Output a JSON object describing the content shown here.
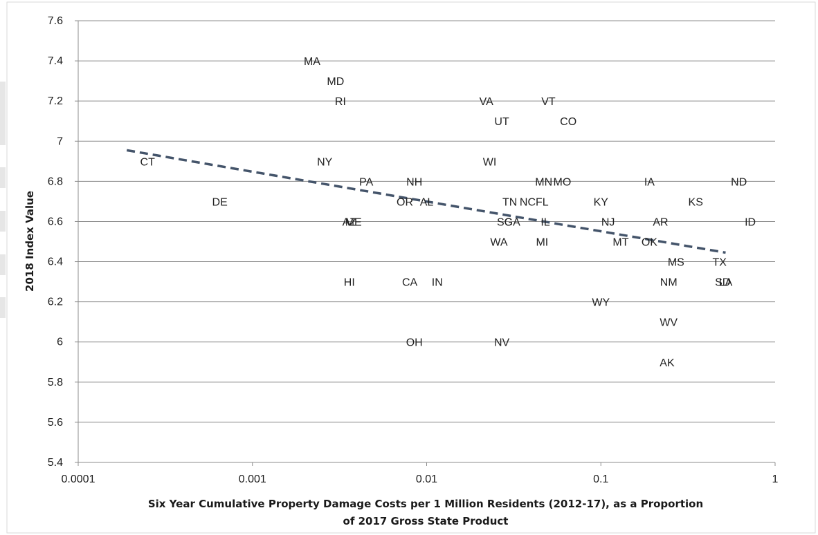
{
  "chart_data": {
    "type": "scatter",
    "title": "",
    "xlabel_lines": [
      "Six Year Cumulative Property Damage Costs per 1 Million Residents (2012-17), as a Proportion",
      "of 2017 Gross State Product"
    ],
    "ylabel": "2018 Index Value",
    "x_scale": "log",
    "xlim": [
      0.0001,
      1
    ],
    "ylim": [
      5.4,
      7.6
    ],
    "x_ticks": [
      0.0001,
      0.001,
      0.01,
      0.1,
      1
    ],
    "x_tick_labels": [
      "0.0001",
      "0.001",
      "0.01",
      "0.1",
      "1"
    ],
    "y_ticks": [
      5.4,
      5.6,
      5.8,
      6,
      6.2,
      6.4,
      6.6,
      6.8,
      7,
      7.2,
      7.4,
      7.6
    ],
    "y_tick_labels": [
      "5.4",
      "5.6",
      "5.8",
      "6",
      "6.2",
      "6.4",
      "6.6",
      "6.8",
      "7",
      "7.2",
      "7.4",
      "7.6"
    ],
    "grid": "horizontal",
    "legend": "none",
    "marker_style": "state abbreviation labels",
    "points": [
      {
        "label": "MA",
        "x": 0.0022,
        "y": 7.4
      },
      {
        "label": "MD",
        "x": 0.003,
        "y": 7.3
      },
      {
        "label": "RI",
        "x": 0.0032,
        "y": 7.2
      },
      {
        "label": "VA",
        "x": 0.022,
        "y": 7.2
      },
      {
        "label": "VT",
        "x": 0.05,
        "y": 7.2
      },
      {
        "label": "UT",
        "x": 0.027,
        "y": 7.1
      },
      {
        "label": "CO",
        "x": 0.065,
        "y": 7.1
      },
      {
        "label": "CT",
        "x": 0.00025,
        "y": 6.9
      },
      {
        "label": "NY",
        "x": 0.0026,
        "y": 6.9
      },
      {
        "label": "WI",
        "x": 0.023,
        "y": 6.9
      },
      {
        "label": "PA",
        "x": 0.0045,
        "y": 6.8
      },
      {
        "label": "NH",
        "x": 0.0085,
        "y": 6.8
      },
      {
        "label": "MN",
        "x": 0.047,
        "y": 6.8
      },
      {
        "label": "MO",
        "x": 0.06,
        "y": 6.8
      },
      {
        "label": "IA",
        "x": 0.19,
        "y": 6.8
      },
      {
        "label": "ND",
        "x": 0.62,
        "y": 6.8
      },
      {
        "label": "DE",
        "x": 0.00065,
        "y": 6.7
      },
      {
        "label": "OR",
        "x": 0.0075,
        "y": 6.7
      },
      {
        "label": "AL",
        "x": 0.01,
        "y": 6.7
      },
      {
        "label": "TN",
        "x": 0.03,
        "y": 6.7
      },
      {
        "label": "NC",
        "x": 0.038,
        "y": 6.7
      },
      {
        "label": "FL",
        "x": 0.046,
        "y": 6.7
      },
      {
        "label": "KY",
        "x": 0.1,
        "y": 6.7
      },
      {
        "label": "KS",
        "x": 0.35,
        "y": 6.7
      },
      {
        "label": "AZ",
        "x": 0.0036,
        "y": 6.6
      },
      {
        "label": "ME",
        "x": 0.0038,
        "y": 6.6
      },
      {
        "label": "SC",
        "x": 0.028,
        "y": 6.6
      },
      {
        "label": "GA",
        "x": 0.031,
        "y": 6.6
      },
      {
        "label": "IL",
        "x": 0.048,
        "y": 6.6
      },
      {
        "label": "NJ",
        "x": 0.11,
        "y": 6.6
      },
      {
        "label": "AR",
        "x": 0.22,
        "y": 6.6
      },
      {
        "label": "ID",
        "x": 0.72,
        "y": 6.6
      },
      {
        "label": "WA",
        "x": 0.026,
        "y": 6.5
      },
      {
        "label": "MI",
        "x": 0.046,
        "y": 6.5
      },
      {
        "label": "MT",
        "x": 0.13,
        "y": 6.5
      },
      {
        "label": "OK",
        "x": 0.19,
        "y": 6.5
      },
      {
        "label": "MS",
        "x": 0.27,
        "y": 6.4
      },
      {
        "label": "TX",
        "x": 0.48,
        "y": 6.4
      },
      {
        "label": "HI",
        "x": 0.0036,
        "y": 6.3
      },
      {
        "label": "CA",
        "x": 0.008,
        "y": 6.3
      },
      {
        "label": "IN",
        "x": 0.0115,
        "y": 6.3
      },
      {
        "label": "NM",
        "x": 0.245,
        "y": 6.3
      },
      {
        "label": "SD",
        "x": 0.5,
        "y": 6.3
      },
      {
        "label": "LA",
        "x": 0.52,
        "y": 6.3
      },
      {
        "label": "WY",
        "x": 0.1,
        "y": 6.2
      },
      {
        "label": "WV",
        "x": 0.245,
        "y": 6.1
      },
      {
        "label": "OH",
        "x": 0.0085,
        "y": 6.0
      },
      {
        "label": "NV",
        "x": 0.027,
        "y": 6.0
      },
      {
        "label": "AK",
        "x": 0.24,
        "y": 5.9
      }
    ],
    "trendline": {
      "style": "dashed",
      "color": "#44546a",
      "x": [
        0.00019,
        0.52
      ],
      "y": [
        6.955,
        6.445
      ]
    }
  }
}
